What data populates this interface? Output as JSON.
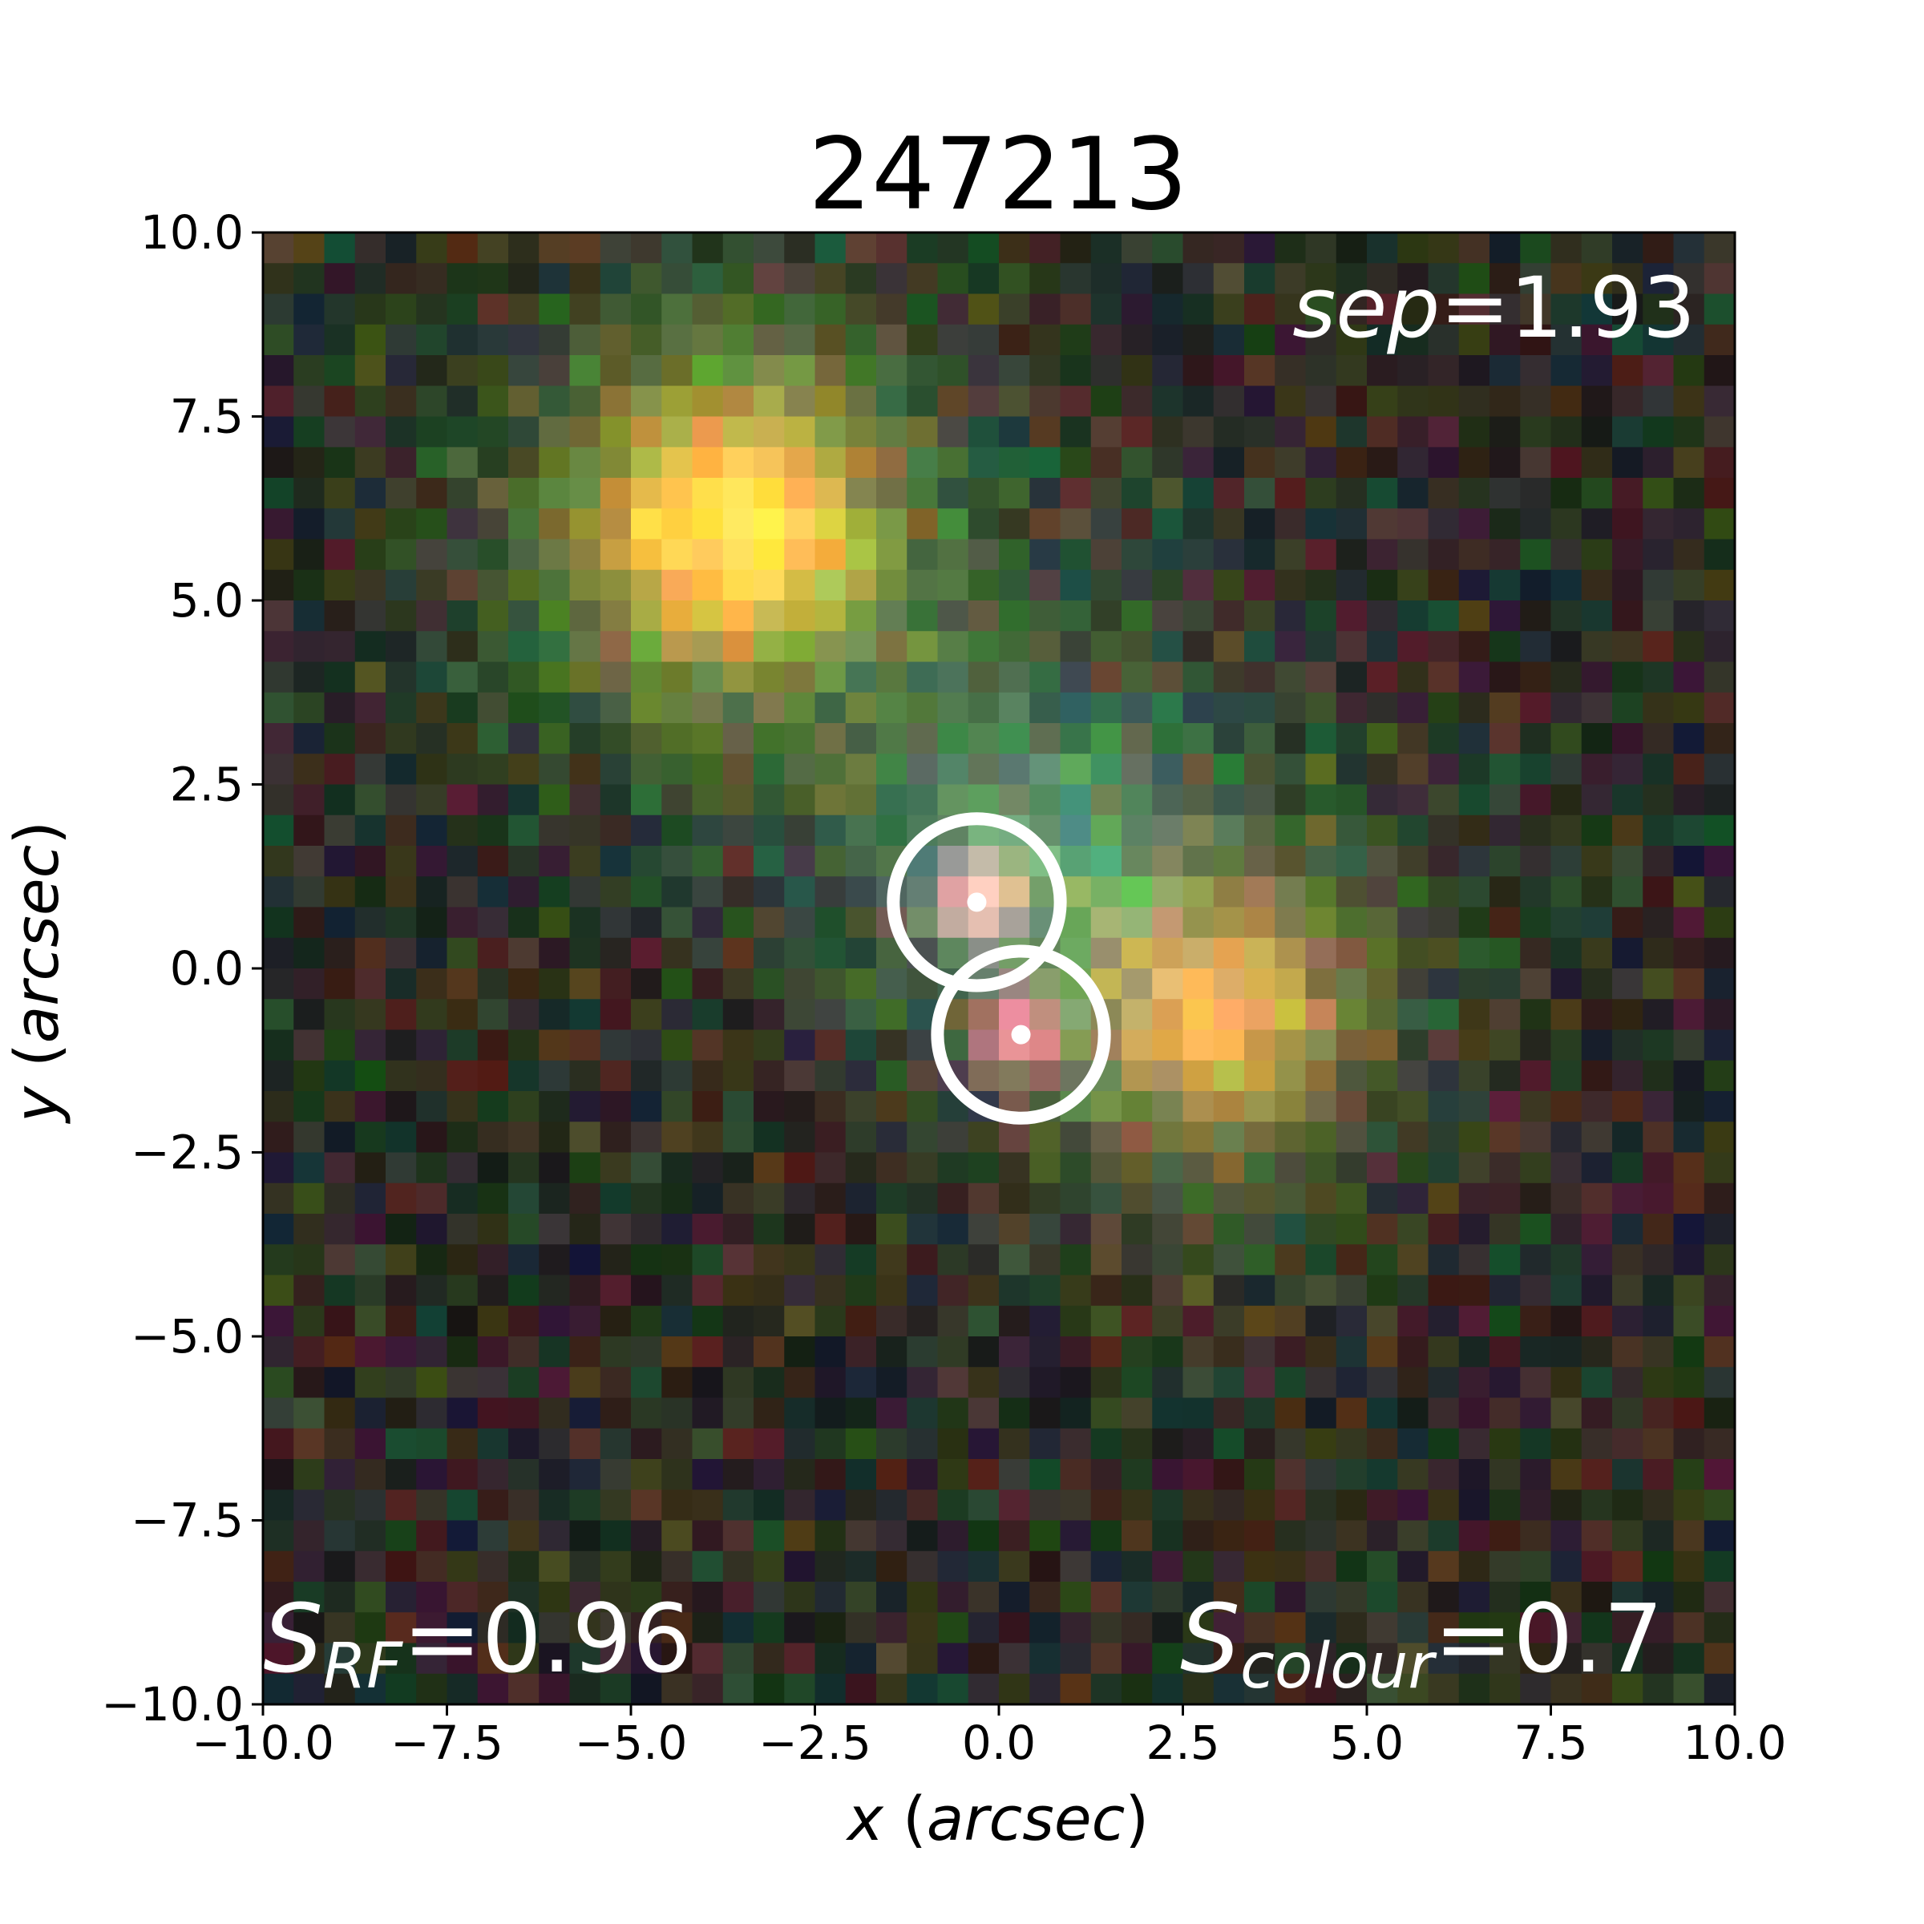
{
  "figure": {
    "title": "247213",
    "xlabel_var": "x",
    "xlabel_unit": "arcsec",
    "ylabel_var": "y",
    "ylabel_unit": "arcsec"
  },
  "annotations": {
    "sep_symbol": "sep",
    "sep_value": "=1.93",
    "s_rf_symbol": "S",
    "s_rf_sub": "RF",
    "s_rf_value": "=0.96",
    "s_colour_symbol": "S",
    "s_colour_sub": "colour",
    "s_colour_value": "=0.7"
  },
  "chart_data": {
    "type": "image",
    "title": "247213",
    "xlabel": "x (arcsec)",
    "ylabel": "y (arcsec)",
    "xlim": [
      -10.0,
      10.0
    ],
    "ylim": [
      -10.0,
      10.0
    ],
    "x_ticks": [
      -10.0,
      -7.5,
      -5.0,
      -2.5,
      0.0,
      2.5,
      5.0,
      7.5,
      10.0
    ],
    "y_ticks": [
      -10.0,
      -7.5,
      -5.0,
      -2.5,
      0.0,
      2.5,
      5.0,
      7.5,
      10.0
    ],
    "x_tick_labels": [
      "−10.0",
      "−7.5",
      "−5.0",
      "−2.5",
      "0.0",
      "2.5",
      "5.0",
      "7.5",
      "10.0"
    ],
    "y_tick_labels": [
      "−10.0",
      "−7.5",
      "−5.0",
      "−2.5",
      "0.0",
      "2.5",
      "5.0",
      "7.5",
      "10.0"
    ],
    "markers": [
      {
        "name": "source-1",
        "x": -0.3,
        "y": 0.9,
        "radius_arcsec": 1.2
      },
      {
        "name": "source-2",
        "x": 0.3,
        "y": -0.9,
        "radius_arcsec": 1.2
      }
    ],
    "background_sources": [
      {
        "name": "bright-orange-source",
        "x": -3.6,
        "y": 6.0,
        "sigma": 1.2,
        "peak": "#ff4a14",
        "halo": "#2f8f36"
      },
      {
        "name": "faint-orange-source",
        "x": 3.0,
        "y": -0.6,
        "sigma": 1.1,
        "peak": "#a9472a",
        "halo": "#2f5a2c"
      },
      {
        "name": "faint-blue-glow",
        "x": 0.4,
        "y": 1.8,
        "sigma": 1.3,
        "peak": "#1e4d52",
        "halo": "#15333a"
      }
    ],
    "pixel_grid": [
      48,
      48
    ],
    "colours": {
      "marker": "#ffffff",
      "annotation_text": "#ffffff",
      "background": "#1a1d1a"
    }
  }
}
